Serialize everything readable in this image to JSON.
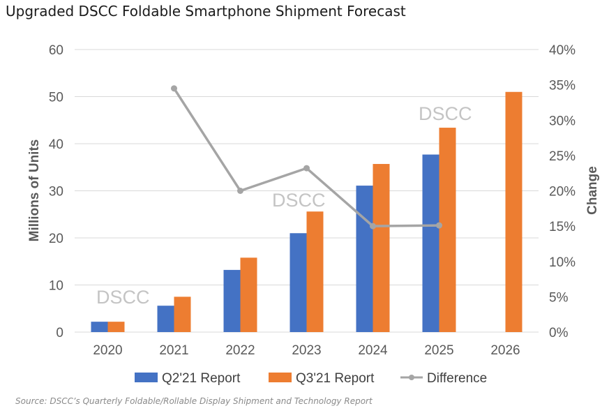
{
  "title": "Upgraded DSCC Foldable Smartphone Shipment Forecast",
  "source": "Source: DSCC’s Quarterly Foldable/Rollable Display Shipment and Technology Report",
  "watermarks": [
    "DSCC",
    "DSCC",
    "DSCC"
  ],
  "chart_data": {
    "type": "bar",
    "title": "Upgraded DSCC Foldable Smartphone Shipment Forecast",
    "categories": [
      "2020",
      "2021",
      "2022",
      "2023",
      "2024",
      "2025",
      "2026"
    ],
    "ylabel": "Millions of Units",
    "y2label": "Change",
    "ylim": [
      0,
      60
    ],
    "y2lim": [
      0,
      0.4
    ],
    "yticks": [
      "0",
      "10",
      "20",
      "30",
      "40",
      "50",
      "60"
    ],
    "y2ticks": [
      "0%",
      "5%",
      "10%",
      "15%",
      "20%",
      "25%",
      "30%",
      "35%",
      "40%"
    ],
    "grid": true,
    "legend_position": "bottom",
    "series": [
      {
        "name": "Q2'21 Report",
        "type": "bar",
        "color": "#4472c4",
        "values": [
          2.2,
          5.6,
          13.2,
          21.0,
          31.1,
          37.7,
          null
        ]
      },
      {
        "name": "Q3'21 Report",
        "type": "bar",
        "color": "#ed7d31",
        "values": [
          2.2,
          7.5,
          15.8,
          25.6,
          35.7,
          43.4,
          51.0
        ]
      },
      {
        "name": "Difference",
        "type": "line",
        "axis": "right",
        "color": "#a5a5a5",
        "values": [
          null,
          0.345,
          0.2,
          0.232,
          0.15,
          0.151,
          null
        ]
      }
    ]
  }
}
